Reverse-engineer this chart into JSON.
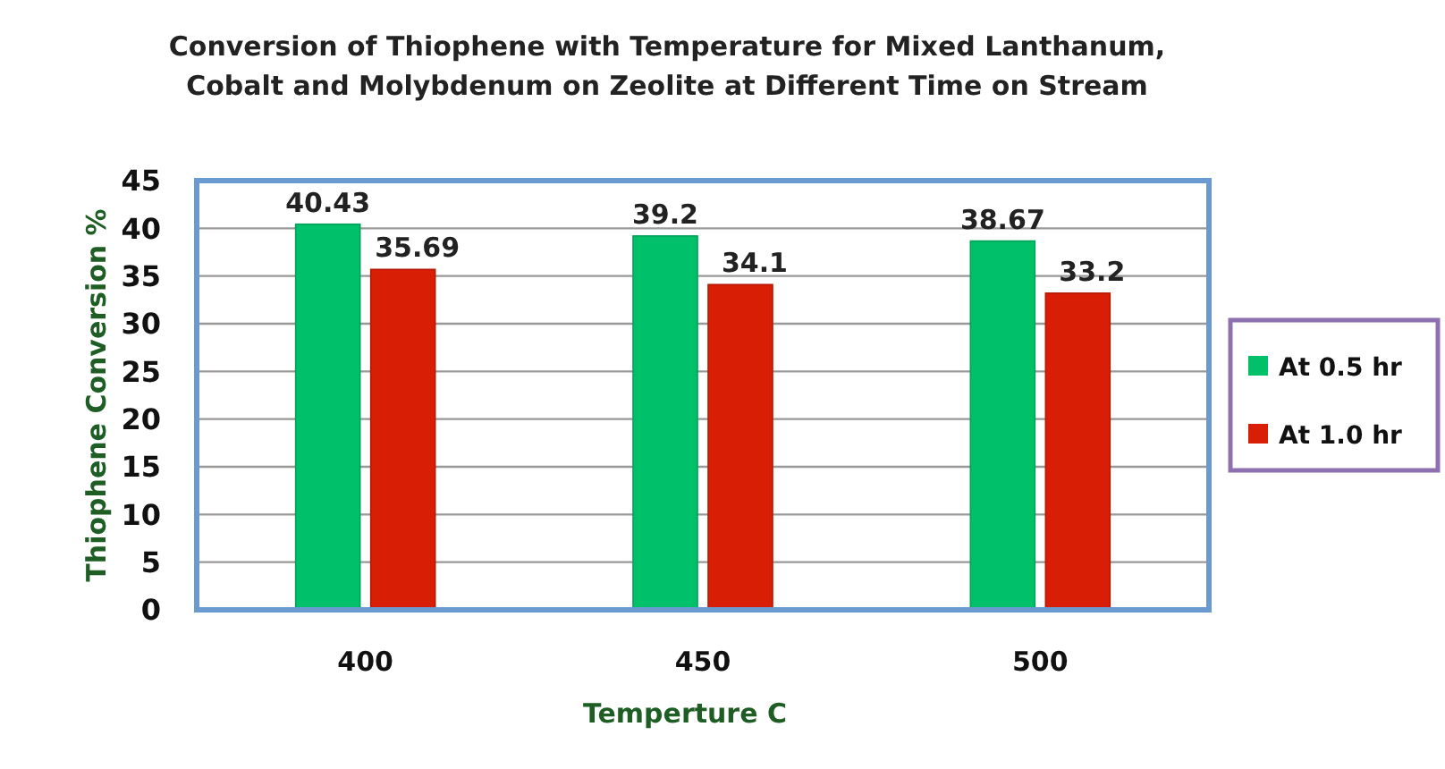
{
  "chart_data": {
    "type": "bar",
    "title": "Conversion of Thiophene with Temperature for  Mixed Lanthanum,\nCobalt and Molybdenum on Zeolite at Different Time on Stream",
    "xlabel": "Temperture  C",
    "ylabel": "Thiophene  Conversion %",
    "categories": [
      "400",
      "450",
      "500"
    ],
    "series": [
      {
        "name": "At 0.5 hr",
        "color": "#00c06a",
        "values": [
          40.43,
          39.2,
          38.67
        ]
      },
      {
        "name": "At 1.0 hr",
        "color": "#d81e05",
        "values": [
          35.69,
          34.1,
          33.2
        ]
      }
    ],
    "ylim": [
      0,
      45
    ],
    "yticks": [
      0,
      5,
      10,
      15,
      20,
      25,
      30,
      35,
      40,
      45
    ],
    "grid": "y",
    "legend": "right",
    "data_labels": true
  }
}
